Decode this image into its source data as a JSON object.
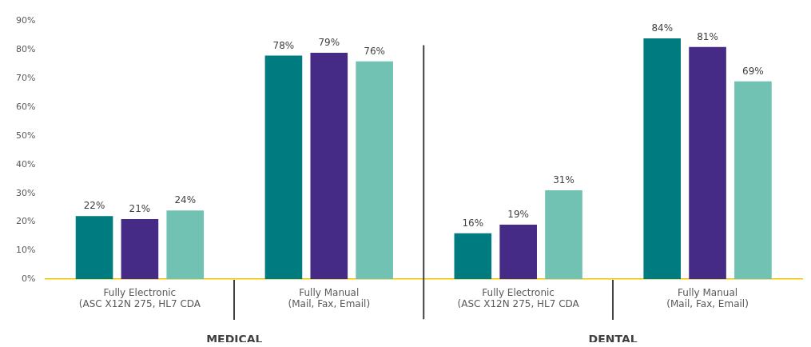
{
  "chart_data": {
    "type": "bar",
    "categories": [
      "Fully Electronic\n(ASC X12N 275, HL7 CDA",
      "Fully Manual\n(Mail, Fax, Email)",
      "Fully Electronic\n(ASC X12N 275, HL7 CDA",
      "Fully Manual\n(Mail, Fax, Email)"
    ],
    "series": [
      {
        "color": "#007c80",
        "values": [
          22,
          78,
          16,
          84
        ],
        "value_labels": [
          "22%",
          "78%",
          "16%",
          "84%"
        ]
      },
      {
        "color": "#452a86",
        "values": [
          21,
          79,
          19,
          81
        ],
        "value_labels": [
          "21%",
          "79%",
          "19%",
          "81%"
        ]
      },
      {
        "color": "#71c2b3",
        "values": [
          24,
          76,
          31,
          69
        ],
        "value_labels": [
          "24%",
          "76%",
          "31%",
          "69%"
        ]
      }
    ],
    "ylim": [
      0,
      90
    ],
    "yticks": [
      {
        "value": 0,
        "label": "0%"
      },
      {
        "value": 10,
        "label": "10%"
      },
      {
        "value": 20,
        "label": "20%"
      },
      {
        "value": 30,
        "label": "30%"
      },
      {
        "value": 40,
        "label": "40%"
      },
      {
        "value": 50,
        "label": "50%"
      },
      {
        "value": 60,
        "label": "60%"
      },
      {
        "value": 70,
        "label": "70%"
      },
      {
        "value": 80,
        "label": "80%"
      },
      {
        "value": 90,
        "label": "90%"
      }
    ],
    "annotations": [
      "MEDICAL",
      "DENTAL"
    ],
    "grid": false,
    "legend": false
  }
}
